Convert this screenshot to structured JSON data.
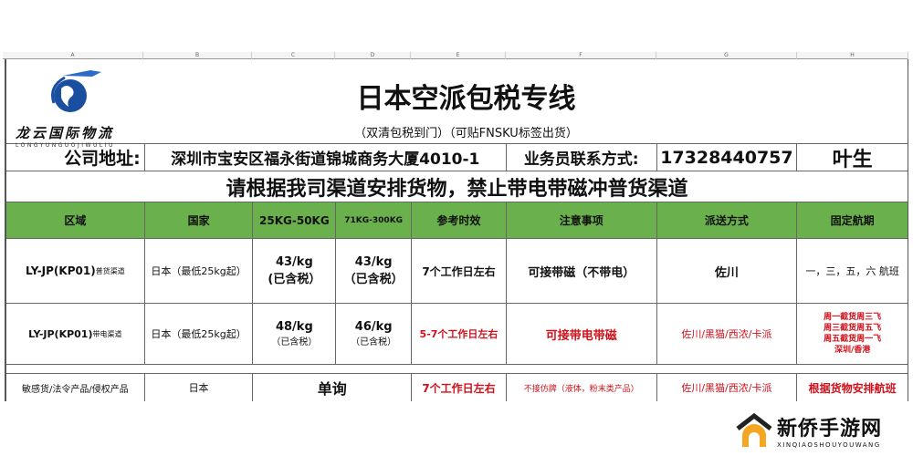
{
  "column_letters": [
    "A",
    "B",
    "C",
    "D",
    "E",
    "F",
    "G",
    "H"
  ],
  "logo": {
    "name": "龙云国际物流",
    "pinyin": "LONGYUNGUOJIWULIU"
  },
  "title": "日本空派包税专线",
  "subtitle": "（双清包税到门）（可贴FNSKU标签出货）",
  "address_label": "公司地址:",
  "address": "深圳市宝安区福永街道锦城商务大厦4010-1",
  "contact_label": "业务员联系方式:",
  "phone": "17328440757",
  "contact_name": "叶生",
  "notice": "请根据我司渠道安排货物，禁止带电带磁冲普货渠道",
  "headers": [
    "区域",
    "国家",
    "25KG-50KG",
    "71KG-300KG",
    "参考时效",
    "注意事项",
    "派送方式",
    "固定航期"
  ],
  "rows": [
    {
      "region": "LY-JP(KP01)",
      "region_sub": "普货渠道",
      "country": "日本（最低25kg起）",
      "p1": "43/kg",
      "p1_note": "(已含税）",
      "p2": "43/kg",
      "p2_note": "（已含税）",
      "time": "7个工作日左右",
      "note": "可接带磁（不带电）",
      "delivery": "佐川",
      "schedule": [
        "一，三，五，六 航班"
      ]
    },
    {
      "region": "LY-JP(KP01)",
      "region_sub": "带电渠道",
      "country": "日本（最低25kg起）",
      "p1": "48/kg",
      "p1_note": "（已含税）",
      "p2": "46/kg",
      "p2_note": "（已含税）",
      "time": "5-7个工作日左右",
      "note": "可接带电带磁",
      "delivery": "佐川/黑猫/西浓/卡派",
      "schedule": [
        "周一截货周三飞",
        "周三截货周五飞",
        "周五截货周一飞",
        "深圳/香港"
      ]
    },
    {
      "region": "敏感货/法令产品/侵权产品",
      "country": "日本",
      "price": "单询",
      "time": "7个工作日左右",
      "note": "不接仿牌（液体，粉末类产品）",
      "delivery": "佐川/黑猫/西浓/卡派",
      "schedule": "根据货物安排航班"
    }
  ],
  "watermark": {
    "name": "新侨手游网",
    "pinyin": "XINQIAOSHOUYOUWANG"
  },
  "colors": {
    "header_green": "#6ab04c",
    "red": "#d0111b",
    "logo_blue": "#1a4fa0"
  }
}
